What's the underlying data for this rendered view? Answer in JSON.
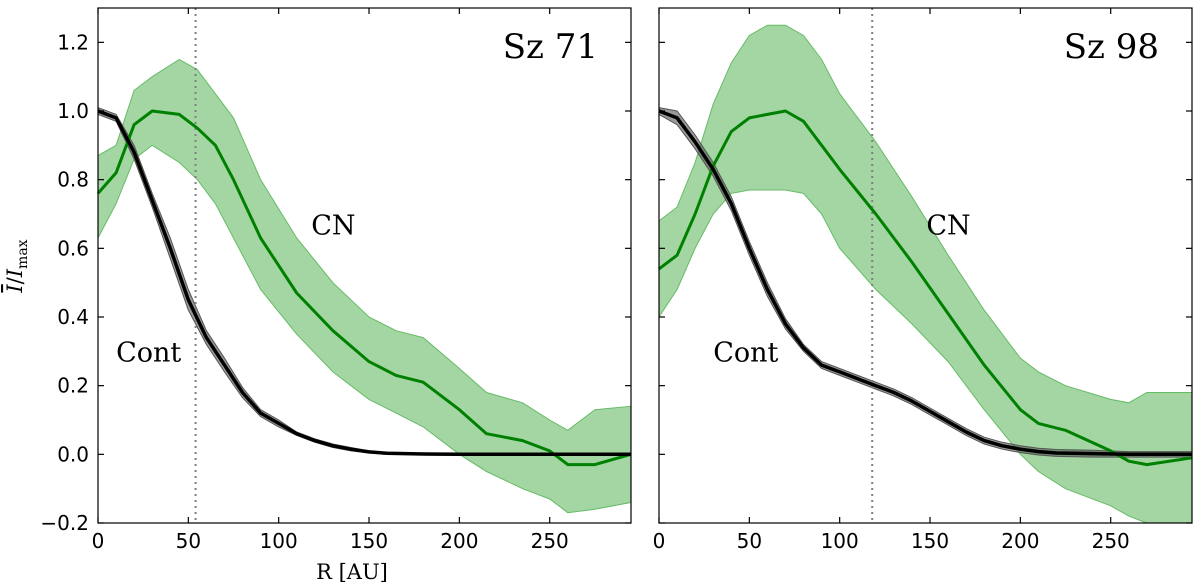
{
  "chart_data": [
    {
      "type": "line",
      "title": "Sz 71",
      "xlabel": "R [AU]",
      "ylabel": "Ī / I_max",
      "xlim": [
        0,
        295
      ],
      "ylim": [
        -0.2,
        1.3
      ],
      "xticks": [
        0,
        50,
        100,
        150,
        200,
        250
      ],
      "xtick_labels": [
        "0",
        "50",
        "100",
        "150",
        "200",
        "250"
      ],
      "yticks": [
        -0.2,
        0.0,
        0.2,
        0.4,
        0.6,
        0.8,
        1.0,
        1.2
      ],
      "ytick_labels": [
        "−0.2",
        "0.0",
        "0.2",
        "0.4",
        "0.6",
        "0.8",
        "1.0",
        "1.2"
      ],
      "vline": 54,
      "annotations": [
        {
          "text": "CN",
          "x": 118,
          "y": 0.64
        },
        {
          "text": "Cont",
          "x": 10,
          "y": 0.27
        }
      ],
      "series": [
        {
          "name": "CN",
          "color": "#008000",
          "band_color": "#66bb66",
          "x": [
            0,
            10,
            20,
            30,
            45,
            55,
            65,
            75,
            90,
            110,
            130,
            150,
            165,
            180,
            200,
            215,
            235,
            250,
            260,
            275,
            295
          ],
          "values": [
            0.76,
            0.82,
            0.96,
            1.0,
            0.99,
            0.95,
            0.9,
            0.8,
            0.63,
            0.47,
            0.36,
            0.27,
            0.23,
            0.21,
            0.13,
            0.06,
            0.04,
            0.01,
            -0.03,
            -0.03,
            0.0
          ],
          "lower": [
            0.63,
            0.73,
            0.86,
            0.9,
            0.85,
            0.8,
            0.73,
            0.63,
            0.48,
            0.35,
            0.24,
            0.16,
            0.12,
            0.08,
            0.0,
            -0.05,
            -0.1,
            -0.13,
            -0.17,
            -0.16,
            -0.14
          ],
          "upper": [
            0.87,
            0.9,
            1.06,
            1.1,
            1.15,
            1.12,
            1.05,
            0.98,
            0.8,
            0.63,
            0.5,
            0.4,
            0.36,
            0.34,
            0.25,
            0.18,
            0.15,
            0.1,
            0.07,
            0.13,
            0.14
          ]
        },
        {
          "name": "Cont",
          "color": "#000000",
          "band_color": "#555555",
          "x": [
            0,
            10,
            20,
            30,
            40,
            50,
            60,
            70,
            80,
            90,
            100,
            110,
            120,
            130,
            140,
            150,
            160,
            170,
            180,
            200,
            220,
            240,
            260,
            295
          ],
          "values": [
            1.0,
            0.98,
            0.88,
            0.74,
            0.6,
            0.45,
            0.34,
            0.26,
            0.18,
            0.12,
            0.09,
            0.06,
            0.04,
            0.025,
            0.015,
            0.007,
            0.003,
            0.002,
            0.001,
            0.0,
            0.0,
            0.0,
            0.0,
            0.0
          ],
          "lower": [
            0.99,
            0.97,
            0.86,
            0.72,
            0.57,
            0.42,
            0.32,
            0.24,
            0.165,
            0.11,
            0.08,
            0.055,
            0.035,
            0.02,
            0.01,
            0.004,
            0.001,
            0.0,
            -0.002,
            -0.003,
            -0.003,
            -0.003,
            -0.003,
            -0.003
          ],
          "upper": [
            1.01,
            0.99,
            0.9,
            0.76,
            0.63,
            0.48,
            0.36,
            0.28,
            0.195,
            0.13,
            0.1,
            0.065,
            0.045,
            0.03,
            0.02,
            0.01,
            0.005,
            0.004,
            0.004,
            0.003,
            0.003,
            0.003,
            0.003,
            0.003
          ]
        }
      ]
    },
    {
      "type": "line",
      "title": "Sz 98",
      "xlabel": "",
      "ylabel": "",
      "xlim": [
        0,
        295
      ],
      "ylim": [
        -0.2,
        1.3
      ],
      "xticks": [
        0,
        50,
        100,
        150,
        200,
        250
      ],
      "xtick_labels": [
        "0",
        "50",
        "100",
        "150",
        "200",
        "250"
      ],
      "yticks": [
        -0.2,
        0.0,
        0.2,
        0.4,
        0.6,
        0.8,
        1.0,
        1.2
      ],
      "ytick_labels": [],
      "vline": 118,
      "annotations": [
        {
          "text": "CN",
          "x": 148,
          "y": 0.64
        },
        {
          "text": "Cont",
          "x": 30,
          "y": 0.27
        }
      ],
      "series": [
        {
          "name": "CN",
          "color": "#008000",
          "band_color": "#66bb66",
          "x": [
            0,
            10,
            20,
            30,
            40,
            50,
            60,
            70,
            80,
            90,
            100,
            120,
            140,
            160,
            180,
            200,
            210,
            225,
            250,
            260,
            270,
            295
          ],
          "values": [
            0.54,
            0.58,
            0.7,
            0.84,
            0.94,
            0.98,
            0.99,
            1.0,
            0.97,
            0.9,
            0.83,
            0.7,
            0.56,
            0.41,
            0.26,
            0.13,
            0.09,
            0.07,
            0.01,
            -0.02,
            -0.03,
            -0.01
          ],
          "lower": [
            0.4,
            0.48,
            0.6,
            0.7,
            0.76,
            0.77,
            0.77,
            0.77,
            0.76,
            0.7,
            0.6,
            0.48,
            0.38,
            0.27,
            0.13,
            0.0,
            -0.05,
            -0.1,
            -0.15,
            -0.18,
            -0.2,
            -0.2
          ],
          "upper": [
            0.68,
            0.72,
            0.85,
            1.02,
            1.14,
            1.22,
            1.25,
            1.25,
            1.22,
            1.15,
            1.05,
            0.91,
            0.75,
            0.58,
            0.42,
            0.28,
            0.24,
            0.2,
            0.16,
            0.15,
            0.18,
            0.18
          ]
        },
        {
          "name": "Cont",
          "color": "#000000",
          "band_color": "#555555",
          "x": [
            0,
            10,
            20,
            30,
            40,
            50,
            60,
            70,
            80,
            90,
            100,
            110,
            120,
            130,
            140,
            150,
            160,
            170,
            180,
            190,
            200,
            210,
            220,
            240,
            260,
            280,
            295
          ],
          "values": [
            1.0,
            0.98,
            0.91,
            0.83,
            0.73,
            0.6,
            0.48,
            0.38,
            0.31,
            0.26,
            0.24,
            0.22,
            0.2,
            0.18,
            0.155,
            0.125,
            0.095,
            0.065,
            0.04,
            0.025,
            0.015,
            0.008,
            0.004,
            0.002,
            0.0,
            0.0,
            0.0
          ],
          "lower": [
            0.99,
            0.96,
            0.89,
            0.81,
            0.71,
            0.58,
            0.46,
            0.365,
            0.3,
            0.25,
            0.23,
            0.21,
            0.19,
            0.17,
            0.145,
            0.115,
            0.085,
            0.055,
            0.03,
            0.015,
            0.005,
            -0.002,
            -0.006,
            -0.008,
            -0.008,
            -0.008,
            -0.008
          ],
          "upper": [
            1.01,
            1.0,
            0.93,
            0.85,
            0.75,
            0.62,
            0.5,
            0.395,
            0.32,
            0.27,
            0.25,
            0.23,
            0.21,
            0.19,
            0.165,
            0.135,
            0.105,
            0.075,
            0.05,
            0.035,
            0.025,
            0.018,
            0.014,
            0.012,
            0.008,
            0.008,
            0.008
          ]
        }
      ]
    }
  ]
}
